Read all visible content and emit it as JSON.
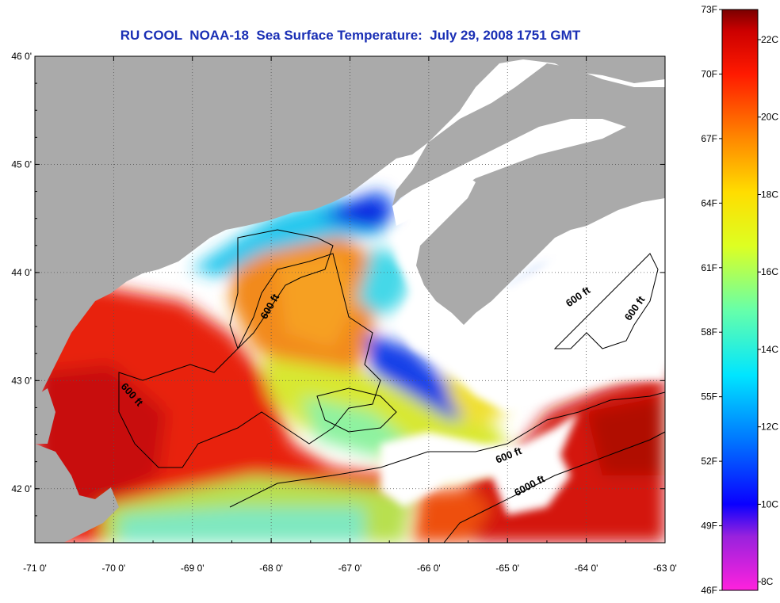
{
  "title": "RU COOL  NOAA-18  Sea Surface Temperature:  July 29, 2008 1751 GMT",
  "x_axis": {
    "ticks": [
      {
        "value": -71,
        "label": "-71 0'"
      },
      {
        "value": -70,
        "label": "-70 0'"
      },
      {
        "value": -69,
        "label": "-69 0'"
      },
      {
        "value": -68,
        "label": "-68 0'"
      },
      {
        "value": -67,
        "label": "-67 0'"
      },
      {
        "value": -66,
        "label": "-66 0'"
      },
      {
        "value": -65,
        "label": "-65 0'"
      },
      {
        "value": -64,
        "label": "-64 0'"
      },
      {
        "value": -63,
        "label": "-63 0'"
      }
    ],
    "range": [
      -71,
      -63
    ]
  },
  "y_axis": {
    "ticks": [
      {
        "value": 46,
        "label": "46 0'"
      },
      {
        "value": 45,
        "label": "45 0'"
      },
      {
        "value": 44,
        "label": "44 0'"
      },
      {
        "value": 43,
        "label": "43 0'"
      },
      {
        "value": 42,
        "label": "42 0'"
      }
    ],
    "range": [
      41.5,
      46
    ]
  },
  "contour_labels": [
    {
      "text": "600 ft",
      "lon": -67.98,
      "lat": 43.67,
      "angle": -60
    },
    {
      "text": "600 ft",
      "lon": -69.8,
      "lat": 42.85,
      "angle": 48
    },
    {
      "text": "600 ft",
      "lon": -64.08,
      "lat": 43.75,
      "angle": -35
    },
    {
      "text": "600 ft",
      "lon": -63.35,
      "lat": 43.65,
      "angle": -55
    },
    {
      "text": "600 ft",
      "lon": -64.97,
      "lat": 42.28,
      "angle": -22
    },
    {
      "text": "6000 ft",
      "lon": -64.7,
      "lat": 42.0,
      "angle": -28
    }
  ],
  "colorbar": {
    "fahrenheit": [
      {
        "value": 73,
        "label": "73F"
      },
      {
        "value": 70,
        "label": "70F"
      },
      {
        "value": 67,
        "label": "67F"
      },
      {
        "value": 64,
        "label": "64F"
      },
      {
        "value": 61,
        "label": "61F"
      },
      {
        "value": 58,
        "label": "58F"
      },
      {
        "value": 55,
        "label": "55F"
      },
      {
        "value": 52,
        "label": "52F"
      },
      {
        "value": 49,
        "label": "49F"
      },
      {
        "value": 46,
        "label": "46F"
      }
    ],
    "celsius": [
      {
        "value": 22,
        "label": "22C"
      },
      {
        "value": 20,
        "label": "20C"
      },
      {
        "value": 18,
        "label": "18C"
      },
      {
        "value": 16,
        "label": "16C"
      },
      {
        "value": 14,
        "label": "14C"
      },
      {
        "value": 12,
        "label": "12C"
      },
      {
        "value": 10,
        "label": "10C"
      },
      {
        "value": 8,
        "label": "8C"
      }
    ],
    "stops": [
      {
        "temp_f": 46,
        "color": "#ff22dd"
      },
      {
        "temp_f": 48.5,
        "color": "#9922dd"
      },
      {
        "temp_f": 50,
        "color": "#0a00ff"
      },
      {
        "temp_f": 53,
        "color": "#0077ff"
      },
      {
        "temp_f": 56,
        "color": "#00e5ff"
      },
      {
        "temp_f": 59,
        "color": "#66ffaa"
      },
      {
        "temp_f": 62,
        "color": "#ddff22"
      },
      {
        "temp_f": 64.5,
        "color": "#ffdd00"
      },
      {
        "temp_f": 67,
        "color": "#ff8800"
      },
      {
        "temp_f": 70,
        "color": "#ff1a00"
      },
      {
        "temp_f": 72,
        "color": "#cc0000"
      },
      {
        "temp_f": 73,
        "color": "#7a0000"
      }
    ]
  },
  "colors": {
    "land": "#aaaaaa",
    "cloud": "#ffffff",
    "title": "#1a2fb5",
    "contour": "#000000"
  }
}
